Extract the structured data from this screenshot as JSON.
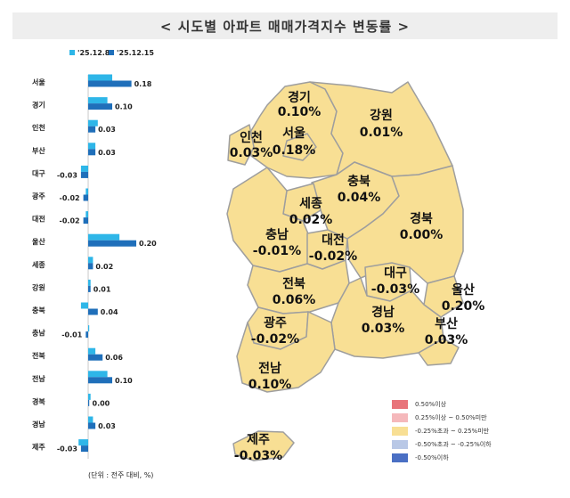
{
  "title": "< 시도별 아파트 매매가격지수 변동률 >",
  "chart_data": [
    {
      "type": "bar",
      "orientation": "horizontal",
      "categories": [
        "서울",
        "경기",
        "인천",
        "부산",
        "대구",
        "광주",
        "대전",
        "울산",
        "세종",
        "강원",
        "충북",
        "충남",
        "전북",
        "전남",
        "경북",
        "경남",
        "제주"
      ],
      "series": [
        {
          "name": "'25.12.8",
          "color": "#2eb6e8",
          "values": [
            0.1,
            0.08,
            0.04,
            0.03,
            -0.03,
            -0.01,
            -0.01,
            0.13,
            0.02,
            0.01,
            -0.03,
            0.0,
            0.03,
            0.08,
            0.01,
            0.02,
            -0.04
          ]
        },
        {
          "name": "'25.12.15",
          "color": "#1f6fba",
          "values": [
            0.18,
            0.1,
            0.03,
            0.03,
            -0.03,
            -0.02,
            -0.02,
            0.2,
            0.02,
            0.01,
            0.04,
            -0.01,
            0.06,
            0.1,
            0.0,
            0.03,
            -0.03
          ]
        }
      ],
      "data_labels": [
        "0.18",
        "0.10",
        "0.03",
        "0.03",
        "-0.03",
        "-0.02",
        "-0.02",
        "0.20",
        "0.02",
        "0.01",
        "0.04",
        "-0.01",
        "0.06",
        "0.10",
        "0.00",
        "0.03",
        "-0.03"
      ],
      "note": "(단위 : 전주 대비, %)",
      "legend_position": "top",
      "grid": false
    },
    {
      "type": "choropleth",
      "regions": [
        {
          "id": "gyeonggi",
          "name": "경기",
          "value": "0.10%",
          "class": "mid"
        },
        {
          "id": "incheon",
          "name": "인천",
          "value": "0.03%",
          "class": "mid"
        },
        {
          "id": "seoul",
          "name": "서울",
          "value": "0.18%",
          "class": "mid"
        },
        {
          "id": "gangwon",
          "name": "강원",
          "value": "0.01%",
          "class": "mid"
        },
        {
          "id": "chungbuk",
          "name": "충북",
          "value": "0.04%",
          "class": "mid"
        },
        {
          "id": "sejong",
          "name": "세종",
          "value": "0.02%",
          "class": "mid"
        },
        {
          "id": "chungnam",
          "name": "충남",
          "value": "-0.01%",
          "class": "mid"
        },
        {
          "id": "daejeon",
          "name": "대전",
          "value": "-0.02%",
          "class": "mid"
        },
        {
          "id": "gyeongbuk",
          "name": "경북",
          "value": "0.00%",
          "class": "mid"
        },
        {
          "id": "jeonbuk",
          "name": "전북",
          "value": "0.06%",
          "class": "mid"
        },
        {
          "id": "daegu",
          "name": "대구",
          "value": "-0.03%",
          "class": "mid"
        },
        {
          "id": "ulsan",
          "name": "울산",
          "value": "0.20%",
          "class": "mid"
        },
        {
          "id": "gwangju",
          "name": "광주",
          "value": "-0.02%",
          "class": "mid"
        },
        {
          "id": "gyeongnam",
          "name": "경남",
          "value": "0.03%",
          "class": "mid"
        },
        {
          "id": "busan",
          "name": "부산",
          "value": "0.03%",
          "class": "mid"
        },
        {
          "id": "jeonnam",
          "name": "전남",
          "value": "0.10%",
          "class": "mid"
        },
        {
          "id": "jeju",
          "name": "제주",
          "value": "-0.03%",
          "class": "mid"
        }
      ],
      "legend": [
        {
          "label": "0.50%이상",
          "color": "#e8747a"
        },
        {
          "label": "0.25%이상 ~ 0.50%미만",
          "color": "#f5b8bb"
        },
        {
          "label": "-0.25%초과 ~ 0.25%미만",
          "color": "#f8df94"
        },
        {
          "label": "-0.50%초과 ~ -0.25%이하",
          "color": "#b9c8e6"
        },
        {
          "label": "-0.50%이하",
          "color": "#4a6fc4"
        }
      ],
      "fill_color": "#f8df94",
      "border_color": "#9e9e9e"
    }
  ]
}
